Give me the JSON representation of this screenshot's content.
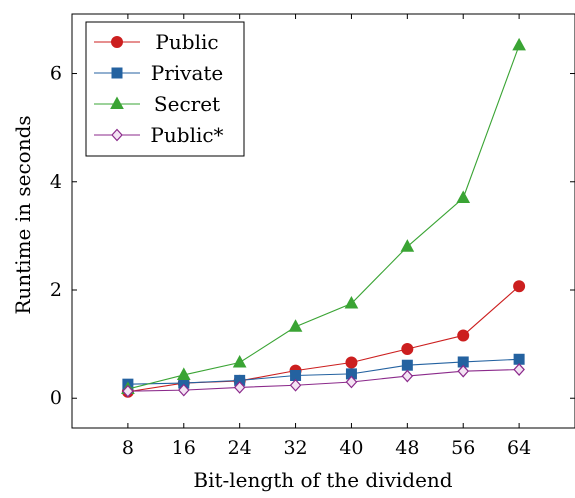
{
  "chart_data": {
    "type": "line",
    "title": "",
    "xlabel": "Bit-length of the dividend",
    "ylabel": "Runtime in seconds",
    "x": [
      8,
      16,
      24,
      32,
      40,
      48,
      56,
      64
    ],
    "x_ticks": [
      "8",
      "16",
      "24",
      "32",
      "40",
      "48",
      "56",
      "64"
    ],
    "y_ticks": [
      "0",
      "2",
      "4",
      "6"
    ],
    "xlim": [
      0,
      72
    ],
    "ylim": [
      -0.55,
      7.1
    ],
    "grid": false,
    "legend_position": "top-left",
    "series": [
      {
        "name": "Public",
        "color": "#cc1f1f",
        "marker": "circle",
        "values": [
          0.12,
          0.28,
          0.32,
          0.51,
          0.66,
          0.91,
          1.16,
          2.07
        ]
      },
      {
        "name": "Private",
        "color": "#2462a0",
        "marker": "square",
        "values": [
          0.26,
          0.28,
          0.33,
          0.42,
          0.45,
          0.61,
          0.67,
          0.72
        ]
      },
      {
        "name": "Secret",
        "color": "#3aa434",
        "marker": "triangle",
        "values": [
          0.17,
          0.43,
          0.66,
          1.32,
          1.75,
          2.8,
          3.7,
          6.52
        ]
      },
      {
        "name": "Public*",
        "color": "#8b2a8b",
        "marker": "diamond",
        "values": [
          0.13,
          0.15,
          0.2,
          0.24,
          0.3,
          0.41,
          0.5,
          0.53
        ]
      }
    ]
  }
}
